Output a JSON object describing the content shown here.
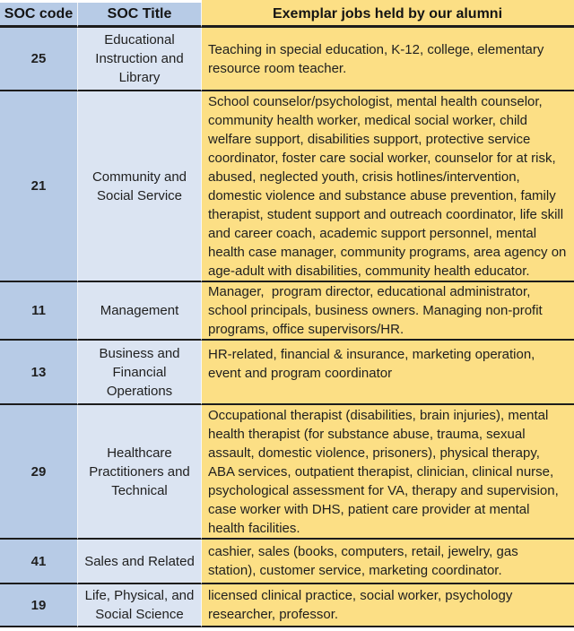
{
  "table": {
    "columns": [
      {
        "label": "SOC code"
      },
      {
        "label": "SOC Title"
      },
      {
        "label": "Exemplar jobs held by our alumni"
      }
    ],
    "rows": [
      {
        "code": "25",
        "title": "Educational Instruction and Library",
        "jobs": "Teaching in special education, K-12, college, elementary resource room teacher."
      },
      {
        "code": "21",
        "title": "Community and Social Service",
        "jobs": "School counselor/psychologist, mental health counselor, community health worker, medical social worker, child welfare support, disabilities support, protective service coordinator, foster care social worker, counselor for at risk, abused, neglected youth, crisis hotlines/intervention, domestic violence and substance abuse prevention, family therapist, student support and outreach coordinator, life skill and career coach, academic support personnel, mental health case manager, community programs, area agency on age-adult with disabilities, community health educator."
      },
      {
        "code": "11",
        "title": "Management",
        "jobs": "Manager,  program director, educational administrator, school principals, business owners. Managing non-profit programs, office supervisors/HR."
      },
      {
        "code": "13",
        "title": "Business and Financial Operations",
        "jobs": "HR-related, financial & insurance, marketing operation, event and program coordinator"
      },
      {
        "code": "29",
        "title": "Healthcare Practitioners and Technical",
        "jobs": "Occupational therapist (disabilities, brain injuries), mental health therapist (for substance abuse, trauma, sexual assault, domestic violence, prisoners), physical therapy, ABA services, outpatient therapist, clinician, clinical nurse, psychological assessment for VA, therapy and supervision, case worker with DHS, patient care provider at mental health facilities."
      },
      {
        "code": "41",
        "title": "Sales and Related",
        "jobs": "cashier, sales (books, computers, retail, jewelry, gas station), customer service, marketing coordinator."
      },
      {
        "code": "19",
        "title": "Life, Physical, and Social Science",
        "jobs": "licensed clinical practice, social worker, psychology researcher, professor."
      }
    ]
  },
  "colors": {
    "code_column_blue": "#b7cbe6",
    "title_column_blue": "#dbe4f2",
    "jobs_column_yellow": "#fcdf85",
    "grid_line": "#1c1c1c",
    "text": "#1f1f1f"
  }
}
